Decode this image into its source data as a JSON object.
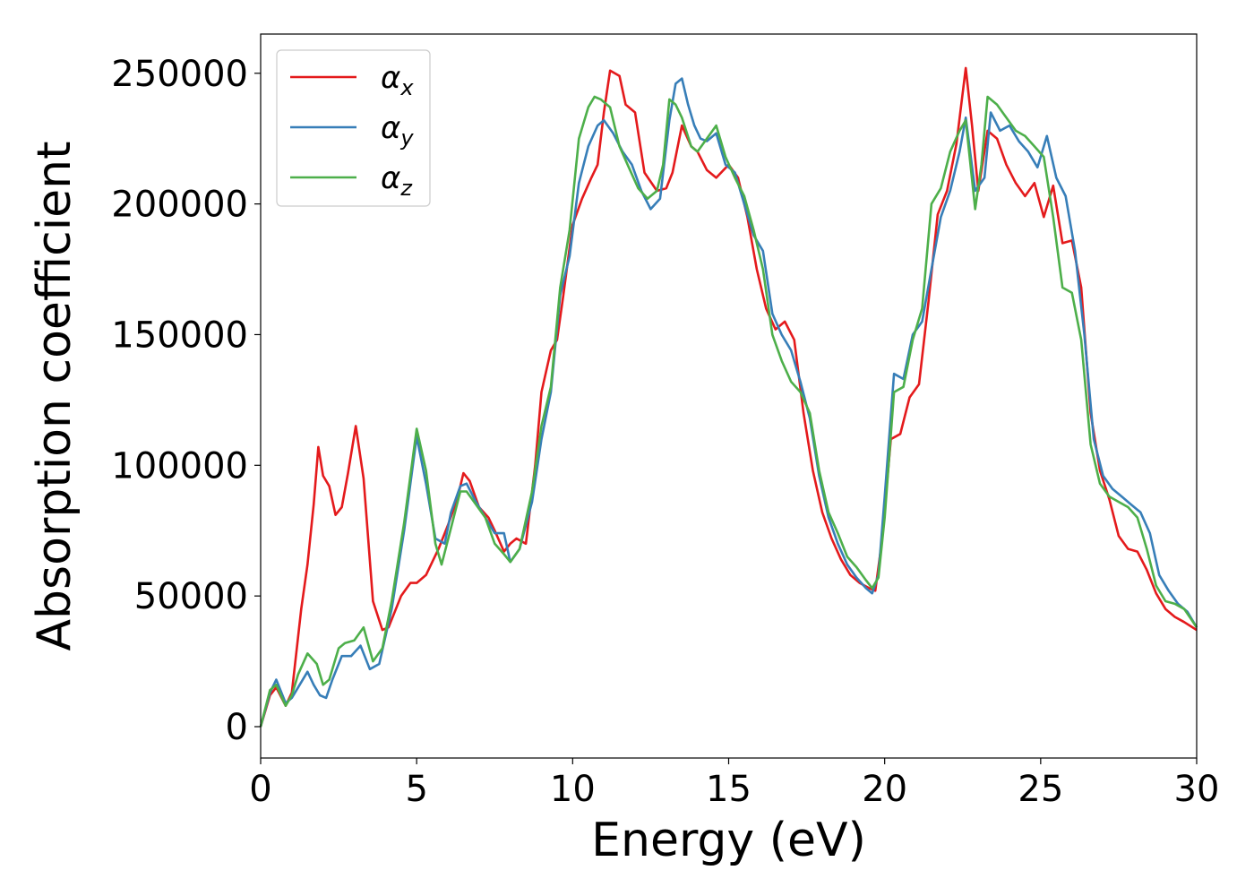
{
  "chart_data": {
    "type": "line",
    "title": "",
    "xlabel": "Energy (eV)",
    "ylabel": "Absorption coefficient",
    "xlim": [
      0,
      30
    ],
    "ylim": [
      -12000,
      265000
    ],
    "xticks": [
      0,
      5,
      10,
      15,
      20,
      25,
      30
    ],
    "yticks": [
      0,
      50000,
      100000,
      150000,
      200000,
      250000
    ],
    "grid": false,
    "legend_position": "top-left",
    "series": [
      {
        "name": "α",
        "subscript": "x",
        "color": "#e41a1c",
        "x": [
          0,
          0.3,
          0.5,
          0.8,
          1.0,
          1.3,
          1.5,
          1.7,
          1.85,
          2.0,
          2.2,
          2.4,
          2.6,
          2.8,
          3.05,
          3.3,
          3.6,
          3.9,
          4.1,
          4.5,
          4.8,
          5.0,
          5.3,
          5.7,
          6.0,
          6.3,
          6.5,
          6.7,
          7.0,
          7.3,
          7.5,
          7.8,
          8.0,
          8.2,
          8.5,
          8.8,
          9.0,
          9.3,
          9.5,
          9.7,
          10.0,
          10.3,
          10.6,
          10.8,
          11.0,
          11.2,
          11.5,
          11.7,
          12.0,
          12.3,
          12.7,
          13.0,
          13.2,
          13.5,
          13.8,
          14.0,
          14.3,
          14.6,
          15.0,
          15.3,
          15.6,
          15.9,
          16.2,
          16.5,
          16.8,
          17.1,
          17.4,
          17.7,
          18.0,
          18.3,
          18.6,
          18.9,
          19.2,
          19.5,
          19.7,
          19.9,
          20.2,
          20.5,
          20.8,
          21.1,
          21.4,
          21.7,
          22.0,
          22.3,
          22.6,
          22.8,
          23.0,
          23.3,
          23.6,
          23.9,
          24.2,
          24.5,
          24.8,
          25.1,
          25.4,
          25.7,
          26.0,
          26.3,
          26.6,
          26.9,
          27.2,
          27.5,
          27.8,
          28.1,
          28.4,
          28.7,
          29.0,
          29.3,
          29.6,
          30.0
        ],
        "y": [
          0,
          12000,
          15000,
          8000,
          13000,
          45000,
          62000,
          85000,
          107000,
          96000,
          92000,
          81000,
          84000,
          97000,
          115000,
          95000,
          48000,
          37000,
          38000,
          50000,
          55000,
          55000,
          58000,
          68000,
          77000,
          87000,
          97000,
          94000,
          84000,
          80000,
          75000,
          67000,
          70000,
          72000,
          70000,
          100000,
          128000,
          144000,
          148000,
          165000,
          192000,
          202000,
          210000,
          215000,
          235000,
          251000,
          249000,
          238000,
          235000,
          212000,
          205000,
          206000,
          212000,
          230000,
          222000,
          220000,
          213000,
          210000,
          215000,
          210000,
          195000,
          175000,
          160000,
          152000,
          155000,
          148000,
          120000,
          98000,
          82000,
          72000,
          64000,
          58000,
          55000,
          53000,
          52000,
          70000,
          110000,
          112000,
          126000,
          131000,
          162000,
          196000,
          205000,
          223000,
          252000,
          230000,
          205000,
          228000,
          225000,
          215000,
          208000,
          203000,
          208000,
          195000,
          207000,
          185000,
          186000,
          168000,
          120000,
          98000,
          87000,
          73000,
          68000,
          67000,
          60000,
          51000,
          45000,
          42000,
          40000,
          37000
        ]
      },
      {
        "name": "α",
        "subscript": "y",
        "color": "#377eb8",
        "x": [
          0,
          0.3,
          0.5,
          0.8,
          1.0,
          1.3,
          1.5,
          1.7,
          1.9,
          2.1,
          2.3,
          2.6,
          2.9,
          3.2,
          3.5,
          3.8,
          4.2,
          4.6,
          5.0,
          5.3,
          5.6,
          5.9,
          6.1,
          6.4,
          6.6,
          6.9,
          7.2,
          7.5,
          7.8,
          8.0,
          8.3,
          8.7,
          9.0,
          9.3,
          9.6,
          9.9,
          10.2,
          10.5,
          10.8,
          11.0,
          11.3,
          11.6,
          11.9,
          12.2,
          12.5,
          12.8,
          13.1,
          13.3,
          13.5,
          13.7,
          13.9,
          14.1,
          14.3,
          14.6,
          14.9,
          15.2,
          15.5,
          15.8,
          16.1,
          16.4,
          16.7,
          17.0,
          17.3,
          17.6,
          17.9,
          18.2,
          18.5,
          18.8,
          19.1,
          19.4,
          19.6,
          19.8,
          20.0,
          20.3,
          20.6,
          20.9,
          21.2,
          21.5,
          21.8,
          22.1,
          22.4,
          22.6,
          22.9,
          23.2,
          23.4,
          23.7,
          24.0,
          24.3,
          24.6,
          24.9,
          25.2,
          25.5,
          25.8,
          26.1,
          26.4,
          26.7,
          27.0,
          27.3,
          27.6,
          27.9,
          28.2,
          28.5,
          28.8,
          29.1,
          29.4,
          29.7,
          30.0
        ],
        "y": [
          0,
          13000,
          18000,
          9000,
          11000,
          17000,
          21000,
          16000,
          12000,
          11000,
          18000,
          27000,
          27000,
          31000,
          22000,
          24000,
          45000,
          75000,
          111000,
          93000,
          72000,
          70000,
          82000,
          92000,
          93000,
          86000,
          80000,
          74000,
          74000,
          63000,
          68000,
          86000,
          110000,
          128000,
          165000,
          180000,
          208000,
          222000,
          230000,
          232000,
          227000,
          220000,
          215000,
          205000,
          198000,
          202000,
          232000,
          246000,
          248000,
          238000,
          230000,
          225000,
          224000,
          227000,
          215000,
          212000,
          200000,
          188000,
          182000,
          158000,
          150000,
          144000,
          132000,
          118000,
          96000,
          80000,
          70000,
          62000,
          57000,
          53000,
          51000,
          58000,
          88000,
          135000,
          133000,
          150000,
          155000,
          175000,
          195000,
          205000,
          220000,
          233000,
          205000,
          210000,
          235000,
          228000,
          230000,
          224000,
          220000,
          214000,
          226000,
          210000,
          203000,
          182000,
          150000,
          110000,
          96000,
          91000,
          88000,
          85000,
          82000,
          74000,
          58000,
          52000,
          47000,
          44000,
          38000
        ]
      },
      {
        "name": "α",
        "subscript": "z",
        "color": "#4daf4a",
        "x": [
          0,
          0.3,
          0.5,
          0.8,
          1.0,
          1.2,
          1.5,
          1.8,
          2.0,
          2.2,
          2.5,
          2.7,
          3.0,
          3.3,
          3.6,
          3.9,
          4.2,
          4.6,
          5.0,
          5.3,
          5.6,
          5.8,
          6.1,
          6.4,
          6.6,
          6.9,
          7.2,
          7.5,
          7.8,
          8.0,
          8.3,
          8.7,
          9.0,
          9.3,
          9.6,
          9.9,
          10.2,
          10.5,
          10.7,
          10.9,
          11.2,
          11.5,
          11.8,
          12.1,
          12.4,
          12.7,
          12.9,
          13.1,
          13.3,
          13.5,
          13.8,
          14.0,
          14.3,
          14.6,
          14.9,
          15.2,
          15.5,
          15.8,
          16.1,
          16.4,
          16.7,
          17.0,
          17.3,
          17.6,
          17.9,
          18.2,
          18.5,
          18.8,
          19.1,
          19.4,
          19.6,
          19.8,
          20.0,
          20.3,
          20.6,
          20.9,
          21.2,
          21.5,
          21.8,
          22.1,
          22.4,
          22.6,
          22.9,
          23.1,
          23.3,
          23.6,
          23.9,
          24.2,
          24.5,
          24.8,
          25.1,
          25.4,
          25.7,
          26.0,
          26.3,
          26.6,
          26.9,
          27.2,
          27.5,
          27.8,
          28.1,
          28.4,
          28.7,
          29.0,
          29.3,
          29.6,
          30.0
        ],
        "y": [
          0,
          14000,
          16000,
          8000,
          12000,
          20000,
          28000,
          24000,
          16000,
          18000,
          30000,
          32000,
          33000,
          38000,
          25000,
          30000,
          48000,
          78000,
          114000,
          98000,
          70000,
          62000,
          76000,
          90000,
          90000,
          85000,
          80000,
          70000,
          66000,
          63000,
          68000,
          90000,
          115000,
          130000,
          168000,
          190000,
          225000,
          237000,
          241000,
          240000,
          237000,
          222000,
          214000,
          206000,
          202000,
          205000,
          215000,
          240000,
          238000,
          233000,
          222000,
          220000,
          225000,
          230000,
          218000,
          210000,
          203000,
          190000,
          175000,
          150000,
          140000,
          132000,
          128000,
          120000,
          98000,
          82000,
          74000,
          65000,
          61000,
          56000,
          53000,
          57000,
          80000,
          128000,
          130000,
          148000,
          160000,
          200000,
          206000,
          220000,
          228000,
          232000,
          198000,
          215000,
          241000,
          238000,
          233000,
          228000,
          226000,
          222000,
          218000,
          195000,
          168000,
          166000,
          148000,
          108000,
          93000,
          88000,
          86000,
          84000,
          80000,
          68000,
          54000,
          48000,
          47000,
          45000,
          38000
        ]
      }
    ]
  }
}
